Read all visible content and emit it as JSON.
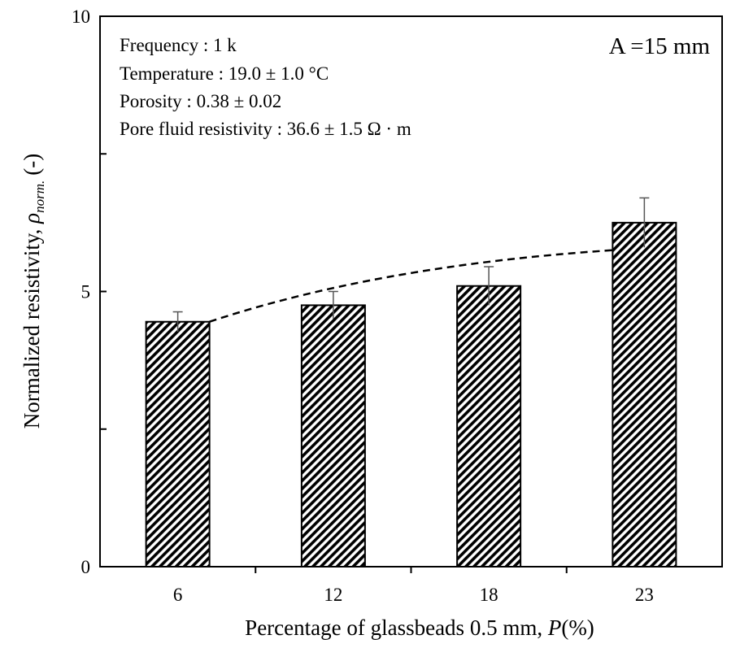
{
  "chart_data": {
    "type": "bar",
    "categories": [
      "6",
      "12",
      "18",
      "23"
    ],
    "values": [
      4.45,
      4.75,
      5.1,
      6.25
    ],
    "error": [
      0.18,
      0.25,
      0.35,
      0.45
    ],
    "trend": {
      "x": [
        "6",
        "23"
      ],
      "y": [
        4.45,
        5.75
      ],
      "style": "dashed"
    },
    "xlabel": "Percentage of glassbeads 0.5 mm,",
    "xlabel_var": "P",
    "xlabel_unit": "(%)",
    "ylabel": "Normalized resistivity,",
    "ylabel_var": "ρ",
    "ylabel_sub": "norm.",
    "ylabel_unit": "(-)",
    "ylim": [
      0,
      10
    ],
    "yticks": [
      "0",
      "5",
      "10"
    ],
    "annotation_size": "A =15 mm",
    "conditions": [
      "Frequency : 1 k",
      "Temperature : 19.0 ± 1.0 °C",
      "Porosity : 0.38 ± 0.02",
      "Pore fluid resistivity : 36.6 ± 1.5 Ω · m"
    ],
    "bar_fill": "diagonal-hatch",
    "colors": {
      "bar": "#000000",
      "background": "#ffffff"
    },
    "grid": false
  }
}
